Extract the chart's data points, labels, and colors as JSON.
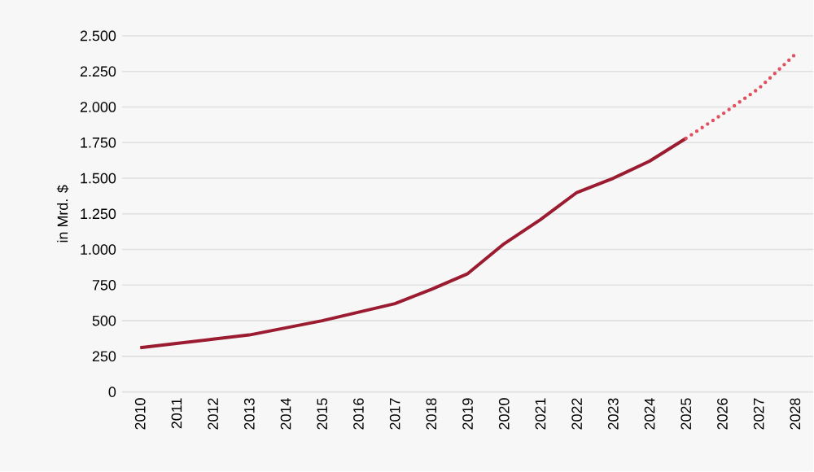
{
  "chart_data": {
    "type": "line",
    "ylabel": "in Mrd. $",
    "categories": [
      "2010",
      "2011",
      "2012",
      "2013",
      "2014",
      "2015",
      "2016",
      "2017",
      "2018",
      "2019",
      "2020",
      "2021",
      "2022",
      "2023",
      "2024",
      "2025",
      "2026",
      "2027",
      "2028"
    ],
    "series": [
      {
        "color": "#9b1b30",
        "line_style": "solid",
        "values": [
          310,
          340,
          370,
          400,
          450,
          500,
          560,
          620,
          720,
          830,
          1040,
          1210,
          1400,
          1500,
          1620,
          1780,
          null,
          null,
          null
        ]
      },
      {
        "color": "#e0505f",
        "line_style": "dotted",
        "values": [
          null,
          null,
          null,
          null,
          null,
          null,
          null,
          null,
          null,
          null,
          null,
          null,
          null,
          null,
          null,
          1780,
          1950,
          2130,
          2370
        ]
      }
    ],
    "ylim": [
      0,
      2500
    ],
    "yticks": [
      0,
      250,
      500,
      750,
      {
        "value": 1000,
        "label": "1.000"
      },
      {
        "value": 1250,
        "label": "1.250"
      },
      {
        "value": 1500,
        "label": "1.500"
      },
      {
        "value": 1750,
        "label": "1.750"
      },
      {
        "value": 2000,
        "label": "2.000"
      },
      {
        "value": 2250,
        "label": "2.250"
      },
      {
        "value": 2500,
        "label": "2.500"
      }
    ],
    "grid": "y",
    "marker": "none"
  }
}
